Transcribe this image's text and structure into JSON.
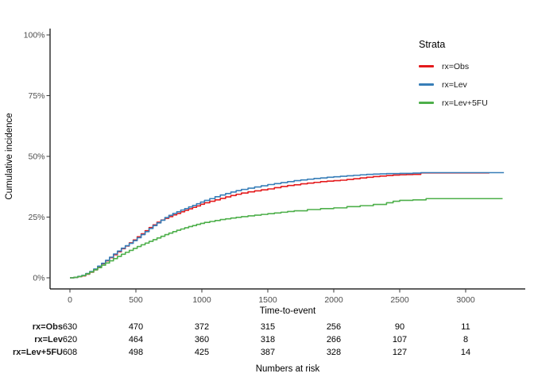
{
  "figure": {
    "background": "#FFFFFF"
  },
  "chart_data": {
    "type": "line",
    "subtype": "cumulative-incidence-step-curves",
    "title": "",
    "xlabel": "Time-to-event",
    "ylabel": "Cumulative incidence",
    "x_ticks": [
      0,
      500,
      1000,
      1500,
      2000,
      2500,
      3000
    ],
    "y_ticks": [
      {
        "value": 0,
        "label": "0%"
      },
      {
        "value": 25,
        "label": "25%"
      },
      {
        "value": 50,
        "label": "50%"
      },
      {
        "value": 75,
        "label": "75%"
      },
      {
        "value": 100,
        "label": "100%"
      }
    ],
    "xlim": [
      -150,
      3450
    ],
    "ylim": [
      0,
      100
    ],
    "grid": false,
    "interpolation": "step-after",
    "legend": {
      "title": "Strata",
      "position": "top-right",
      "entries": [
        {
          "label": "rx=Obs",
          "color": "#E41A1C"
        },
        {
          "label": "rx=Lev",
          "color": "#377EB8"
        },
        {
          "label": "rx=Lev+5FU",
          "color": "#4DAF4A"
        }
      ]
    },
    "series": [
      {
        "name": "rx=Obs",
        "color": "#E41A1C",
        "points": [
          [
            0,
            0
          ],
          [
            30,
            0.2
          ],
          [
            60,
            0.5
          ],
          [
            90,
            0.8
          ],
          [
            120,
            1.5
          ],
          [
            150,
            2.3
          ],
          [
            180,
            3.3
          ],
          [
            210,
            4.5
          ],
          [
            240,
            5.8
          ],
          [
            270,
            7.0
          ],
          [
            300,
            8.3
          ],
          [
            330,
            9.5
          ],
          [
            360,
            10.7
          ],
          [
            390,
            12.0
          ],
          [
            420,
            13.1
          ],
          [
            450,
            14.4
          ],
          [
            480,
            15.6
          ],
          [
            510,
            16.9
          ],
          [
            540,
            18.1
          ],
          [
            570,
            19.4
          ],
          [
            600,
            20.7
          ],
          [
            630,
            21.8
          ],
          [
            660,
            22.9
          ],
          [
            690,
            23.8
          ],
          [
            720,
            24.5
          ],
          [
            750,
            25.2
          ],
          [
            780,
            25.9
          ],
          [
            810,
            26.5
          ],
          [
            840,
            27.2
          ],
          [
            870,
            27.8
          ],
          [
            900,
            28.4
          ],
          [
            930,
            29.0
          ],
          [
            960,
            29.6
          ],
          [
            990,
            30.3
          ],
          [
            1020,
            30.9
          ],
          [
            1060,
            31.5
          ],
          [
            1100,
            32.1
          ],
          [
            1140,
            32.7
          ],
          [
            1180,
            33.3
          ],
          [
            1220,
            33.9
          ],
          [
            1260,
            34.4
          ],
          [
            1300,
            34.9
          ],
          [
            1350,
            35.4
          ],
          [
            1400,
            35.8
          ],
          [
            1450,
            36.2
          ],
          [
            1500,
            36.6
          ],
          [
            1550,
            37.1
          ],
          [
            1600,
            37.6
          ],
          [
            1650,
            38.0
          ],
          [
            1700,
            38.3
          ],
          [
            1750,
            38.7
          ],
          [
            1800,
            39.0
          ],
          [
            1850,
            39.3
          ],
          [
            1900,
            39.6
          ],
          [
            1950,
            39.8
          ],
          [
            2000,
            40.0
          ],
          [
            2050,
            40.2
          ],
          [
            2100,
            40.5
          ],
          [
            2150,
            40.8
          ],
          [
            2200,
            41.1
          ],
          [
            2250,
            41.4
          ],
          [
            2300,
            41.7
          ],
          [
            2350,
            41.9
          ],
          [
            2400,
            42.1
          ],
          [
            2450,
            42.3
          ],
          [
            2500,
            42.4
          ],
          [
            2550,
            42.5
          ],
          [
            2600,
            42.6
          ],
          [
            2660,
            43.2
          ],
          [
            3180,
            43.2
          ]
        ]
      },
      {
        "name": "rx=Lev",
        "color": "#377EB8",
        "points": [
          [
            0,
            0
          ],
          [
            30,
            0.2
          ],
          [
            60,
            0.6
          ],
          [
            90,
            1.0
          ],
          [
            120,
            1.8
          ],
          [
            150,
            2.6
          ],
          [
            180,
            3.6
          ],
          [
            210,
            4.8
          ],
          [
            240,
            6.0
          ],
          [
            270,
            7.2
          ],
          [
            300,
            8.5
          ],
          [
            330,
            9.8
          ],
          [
            360,
            11.0
          ],
          [
            390,
            12.2
          ],
          [
            420,
            13.2
          ],
          [
            450,
            14.2
          ],
          [
            480,
            15.3
          ],
          [
            510,
            16.5
          ],
          [
            540,
            17.8
          ],
          [
            570,
            19.0
          ],
          [
            600,
            20.3
          ],
          [
            630,
            21.5
          ],
          [
            660,
            22.6
          ],
          [
            690,
            23.7
          ],
          [
            720,
            24.8
          ],
          [
            750,
            25.7
          ],
          [
            780,
            26.5
          ],
          [
            810,
            27.2
          ],
          [
            840,
            27.9
          ],
          [
            870,
            28.5
          ],
          [
            900,
            29.2
          ],
          [
            930,
            29.8
          ],
          [
            960,
            30.5
          ],
          [
            990,
            31.2
          ],
          [
            1020,
            31.9
          ],
          [
            1060,
            32.6
          ],
          [
            1100,
            33.4
          ],
          [
            1140,
            34.1
          ],
          [
            1180,
            34.7
          ],
          [
            1220,
            35.3
          ],
          [
            1260,
            35.9
          ],
          [
            1300,
            36.4
          ],
          [
            1350,
            36.9
          ],
          [
            1400,
            37.4
          ],
          [
            1450,
            37.9
          ],
          [
            1500,
            38.4
          ],
          [
            1550,
            38.8
          ],
          [
            1600,
            39.2
          ],
          [
            1650,
            39.6
          ],
          [
            1700,
            40.0
          ],
          [
            1750,
            40.3
          ],
          [
            1800,
            40.6
          ],
          [
            1850,
            40.9
          ],
          [
            1900,
            41.1
          ],
          [
            1950,
            41.4
          ],
          [
            2000,
            41.6
          ],
          [
            2050,
            41.8
          ],
          [
            2100,
            42.0
          ],
          [
            2150,
            42.2
          ],
          [
            2200,
            42.4
          ],
          [
            2250,
            42.6
          ],
          [
            2300,
            42.7
          ],
          [
            2350,
            42.8
          ],
          [
            2400,
            42.9
          ],
          [
            2500,
            43.0
          ],
          [
            2600,
            43.1
          ],
          [
            2660,
            43.3
          ],
          [
            3290,
            43.3
          ]
        ]
      },
      {
        "name": "rx=Lev+5FU",
        "color": "#4DAF4A",
        "points": [
          [
            0,
            0
          ],
          [
            30,
            0.2
          ],
          [
            60,
            0.5
          ],
          [
            90,
            0.9
          ],
          [
            120,
            1.6
          ],
          [
            150,
            2.4
          ],
          [
            180,
            3.3
          ],
          [
            210,
            4.2
          ],
          [
            240,
            5.2
          ],
          [
            270,
            6.1
          ],
          [
            300,
            7.0
          ],
          [
            330,
            7.9
          ],
          [
            360,
            8.8
          ],
          [
            390,
            9.7
          ],
          [
            420,
            10.5
          ],
          [
            450,
            11.3
          ],
          [
            480,
            12.1
          ],
          [
            510,
            12.9
          ],
          [
            540,
            13.6
          ],
          [
            570,
            14.3
          ],
          [
            600,
            15.0
          ],
          [
            630,
            15.7
          ],
          [
            660,
            16.4
          ],
          [
            690,
            17.1
          ],
          [
            720,
            17.8
          ],
          [
            750,
            18.4
          ],
          [
            780,
            19.0
          ],
          [
            810,
            19.6
          ],
          [
            840,
            20.1
          ],
          [
            870,
            20.6
          ],
          [
            900,
            21.1
          ],
          [
            930,
            21.5
          ],
          [
            960,
            22.0
          ],
          [
            990,
            22.4
          ],
          [
            1020,
            22.8
          ],
          [
            1060,
            23.2
          ],
          [
            1100,
            23.6
          ],
          [
            1140,
            24.0
          ],
          [
            1180,
            24.3
          ],
          [
            1220,
            24.6
          ],
          [
            1260,
            24.9
          ],
          [
            1300,
            25.2
          ],
          [
            1350,
            25.5
          ],
          [
            1400,
            25.8
          ],
          [
            1450,
            26.1
          ],
          [
            1500,
            26.4
          ],
          [
            1550,
            26.7
          ],
          [
            1600,
            27.0
          ],
          [
            1650,
            27.3
          ],
          [
            1700,
            27.6
          ],
          [
            1800,
            28.1
          ],
          [
            1900,
            28.5
          ],
          [
            2000,
            28.8
          ],
          [
            2100,
            29.3
          ],
          [
            2200,
            29.7
          ],
          [
            2300,
            30.2
          ],
          [
            2400,
            30.9
          ],
          [
            2450,
            31.5
          ],
          [
            2500,
            31.9
          ],
          [
            2600,
            32.1
          ],
          [
            2700,
            32.6
          ],
          [
            3280,
            32.6
          ]
        ]
      }
    ]
  },
  "risk_table": {
    "title": "Numbers at risk",
    "time_points": [
      0,
      500,
      1000,
      1500,
      2000,
      2500,
      3000
    ],
    "rows": [
      {
        "label": "rx=Obs",
        "values": [
          "630",
          "470",
          "372",
          "315",
          "256",
          "90",
          "11"
        ]
      },
      {
        "label": "rx=Lev",
        "values": [
          "620",
          "464",
          "360",
          "318",
          "266",
          "107",
          "8"
        ]
      },
      {
        "label": "rx=Lev+5FU",
        "values": [
          "608",
          "498",
          "425",
          "387",
          "328",
          "127",
          "14"
        ]
      }
    ]
  }
}
